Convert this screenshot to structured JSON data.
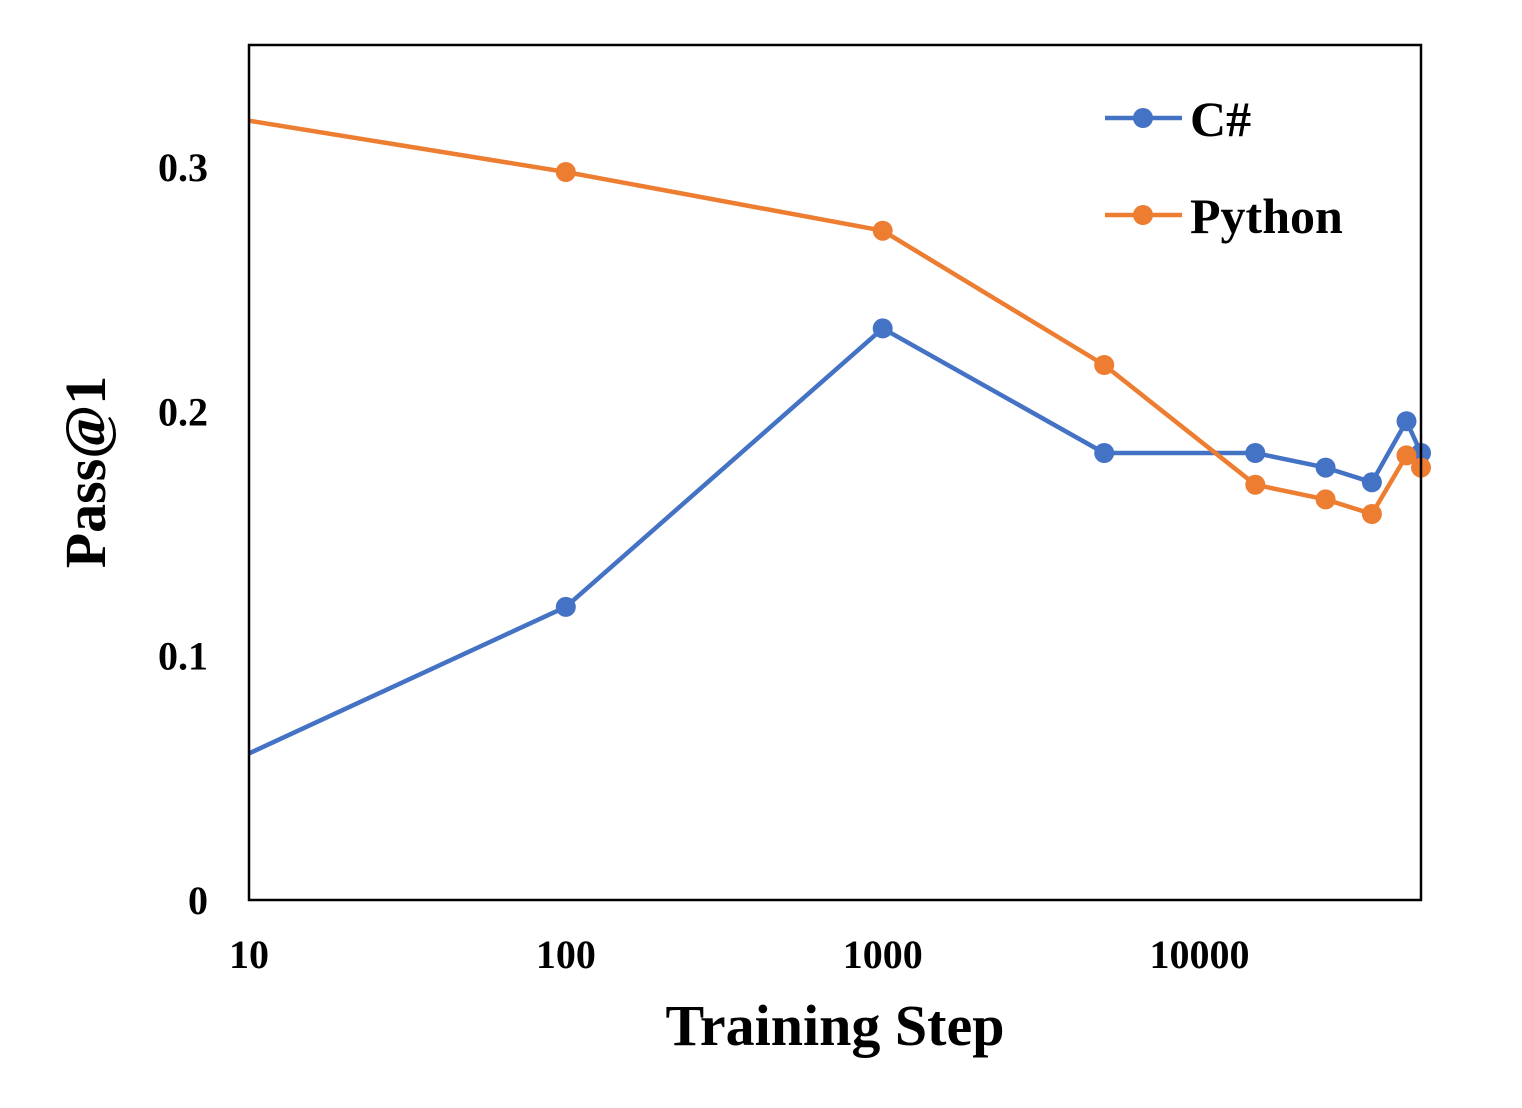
{
  "chart_data": {
    "type": "line",
    "title": "",
    "xlabel": "Training Step",
    "ylabel": "Pass@1",
    "xscale": "log",
    "xlim": [
      10,
      50000
    ],
    "ylim": [
      0,
      0.35
    ],
    "grid": false,
    "legend_position": "top-right",
    "x_ticks": [
      10,
      100,
      1000,
      10000
    ],
    "x_tick_labels": [
      "10",
      "100",
      "1000",
      "10000"
    ],
    "y_ticks": [
      0,
      0.1,
      0.2,
      0.3
    ],
    "y_tick_labels": [
      "0",
      "0.1",
      "0.2",
      "0.3"
    ],
    "series": [
      {
        "name": "C#",
        "color": "#4472C4",
        "points": [
          {
            "x": 10,
            "y": 0.06,
            "marker": false
          },
          {
            "x": 100,
            "y": 0.12,
            "marker": true
          },
          {
            "x": 1000,
            "y": 0.234,
            "marker": true
          },
          {
            "x": 5000,
            "y": 0.183,
            "marker": true
          },
          {
            "x": 15000,
            "y": 0.183,
            "marker": true
          },
          {
            "x": 25000,
            "y": 0.177,
            "marker": true
          },
          {
            "x": 35000,
            "y": 0.171,
            "marker": true
          },
          {
            "x": 45000,
            "y": 0.196,
            "marker": true
          },
          {
            "x": 50000,
            "y": 0.183,
            "marker": true
          }
        ]
      },
      {
        "name": "Python",
        "color": "#ED7D31",
        "points": [
          {
            "x": 10,
            "y": 0.319,
            "marker": false
          },
          {
            "x": 100,
            "y": 0.298,
            "marker": true
          },
          {
            "x": 1000,
            "y": 0.274,
            "marker": true
          },
          {
            "x": 5000,
            "y": 0.219,
            "marker": true
          },
          {
            "x": 15000,
            "y": 0.17,
            "marker": true
          },
          {
            "x": 25000,
            "y": 0.164,
            "marker": true
          },
          {
            "x": 35000,
            "y": 0.158,
            "marker": true
          },
          {
            "x": 45000,
            "y": 0.182,
            "marker": true
          },
          {
            "x": 50000,
            "y": 0.177,
            "marker": true
          }
        ]
      }
    ]
  }
}
